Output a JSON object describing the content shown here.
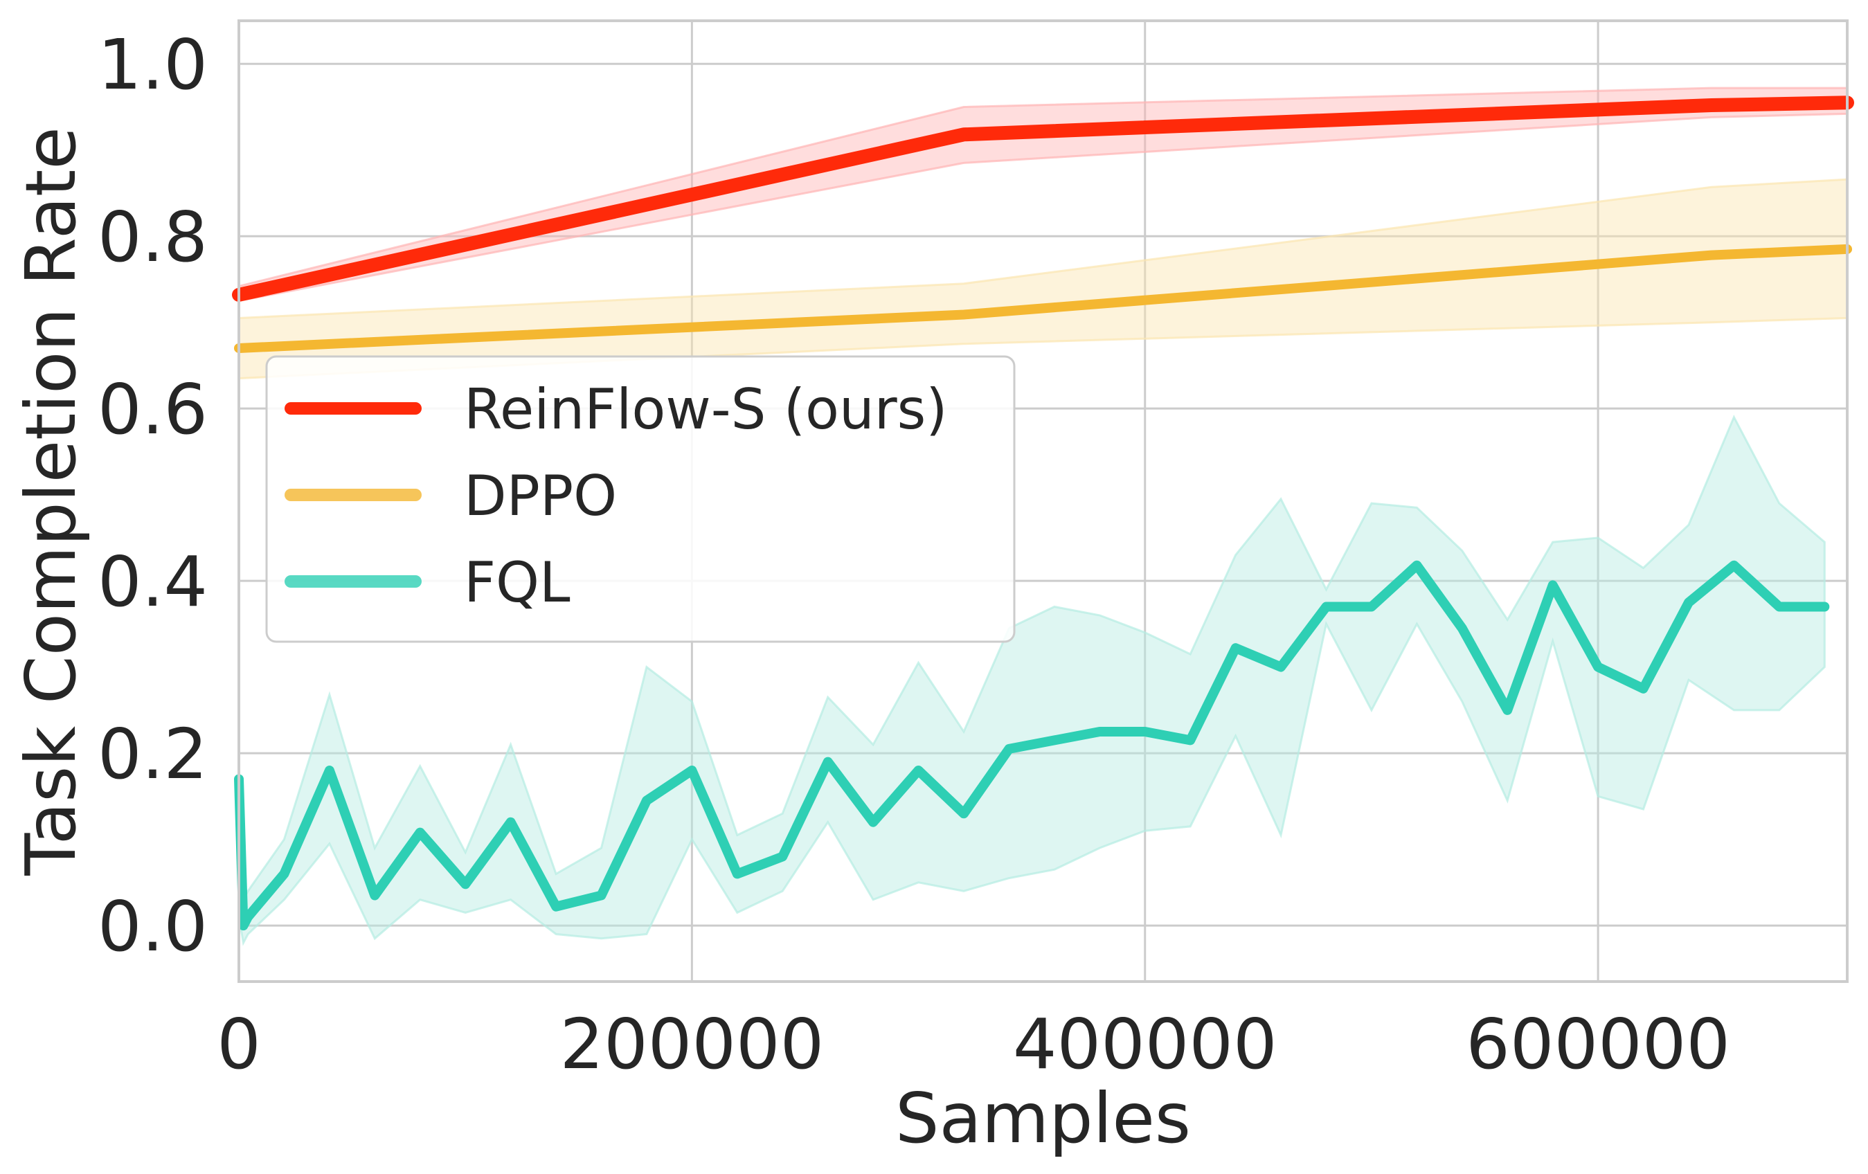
{
  "chart_data": {
    "type": "line",
    "xlabel": "Samples",
    "ylabel": "Task Completion Rate",
    "xlim": [
      0,
      710000
    ],
    "ylim": [
      -0.065,
      1.05
    ],
    "xticks": [
      0,
      200000,
      400000,
      600000
    ],
    "xtick_labels": [
      "0",
      "200000",
      "400000",
      "600000"
    ],
    "yticks": [
      0.0,
      0.2,
      0.4,
      0.6,
      0.8,
      1.0
    ],
    "ytick_labels": [
      "0.0",
      "0.2",
      "0.4",
      "0.6",
      "0.8",
      "1.0"
    ],
    "grid": true,
    "legend_position": "center-left",
    "series": [
      {
        "name": "ReinFlow-S (ours)",
        "color": "#ff2a0a",
        "band_color": "#ffb3b3",
        "x": [
          0,
          320000,
          650000,
          710000
        ],
        "y": [
          0.732,
          0.918,
          0.952,
          0.955
        ],
        "lower": [
          0.725,
          0.885,
          0.938,
          0.942
        ],
        "upper": [
          0.742,
          0.95,
          0.972,
          0.972
        ]
      },
      {
        "name": "DPPO",
        "color": "#f4b731",
        "band_color": "#fbe5b0",
        "x": [
          0,
          320000,
          650000,
          710000
        ],
        "y": [
          0.67,
          0.709,
          0.778,
          0.785
        ],
        "lower": [
          0.635,
          0.675,
          0.7,
          0.705
        ],
        "upper": [
          0.705,
          0.745,
          0.857,
          0.866
        ]
      },
      {
        "name": "FQL",
        "color": "#2ecfb4",
        "band_color": "#b5ece2",
        "x": [
          0,
          2000,
          4000,
          20000,
          40000,
          60000,
          80000,
          100000,
          120000,
          140000,
          160000,
          180000,
          200000,
          220000,
          240000,
          260000,
          280000,
          300000,
          320000,
          340000,
          360000,
          380000,
          400000,
          420000,
          440000,
          460000,
          480000,
          500000,
          520000,
          540000,
          560000,
          580000,
          600000,
          620000,
          640000,
          660000,
          680000,
          700000
        ],
        "y": [
          0.17,
          0.0,
          0.01,
          0.06,
          0.18,
          0.035,
          0.108,
          0.048,
          0.12,
          0.022,
          0.035,
          0.145,
          0.18,
          0.06,
          0.08,
          0.19,
          0.12,
          0.18,
          0.13,
          0.205,
          0.215,
          0.225,
          0.225,
          0.215,
          0.322,
          0.3,
          0.37,
          0.37,
          0.418,
          0.345,
          0.25,
          0.395,
          0.3,
          0.275,
          0.375,
          0.418,
          0.37,
          0.37
        ],
        "lower": [
          0.01,
          -0.02,
          -0.01,
          0.03,
          0.095,
          -0.015,
          0.03,
          0.015,
          0.03,
          -0.01,
          -0.015,
          -0.01,
          0.1,
          0.015,
          0.04,
          0.12,
          0.03,
          0.05,
          0.04,
          0.055,
          0.065,
          0.09,
          0.11,
          0.115,
          0.22,
          0.105,
          0.35,
          0.25,
          0.35,
          0.26,
          0.145,
          0.33,
          0.15,
          0.135,
          0.285,
          0.25,
          0.25,
          0.3
        ],
        "upper": [
          0.18,
          0.03,
          0.04,
          0.1,
          0.268,
          0.09,
          0.185,
          0.085,
          0.21,
          0.06,
          0.09,
          0.3,
          0.26,
          0.105,
          0.13,
          0.265,
          0.21,
          0.305,
          0.225,
          0.345,
          0.37,
          0.36,
          0.34,
          0.315,
          0.43,
          0.495,
          0.39,
          0.49,
          0.485,
          0.435,
          0.355,
          0.445,
          0.45,
          0.415,
          0.465,
          0.59,
          0.49,
          0.445
        ]
      }
    ]
  }
}
